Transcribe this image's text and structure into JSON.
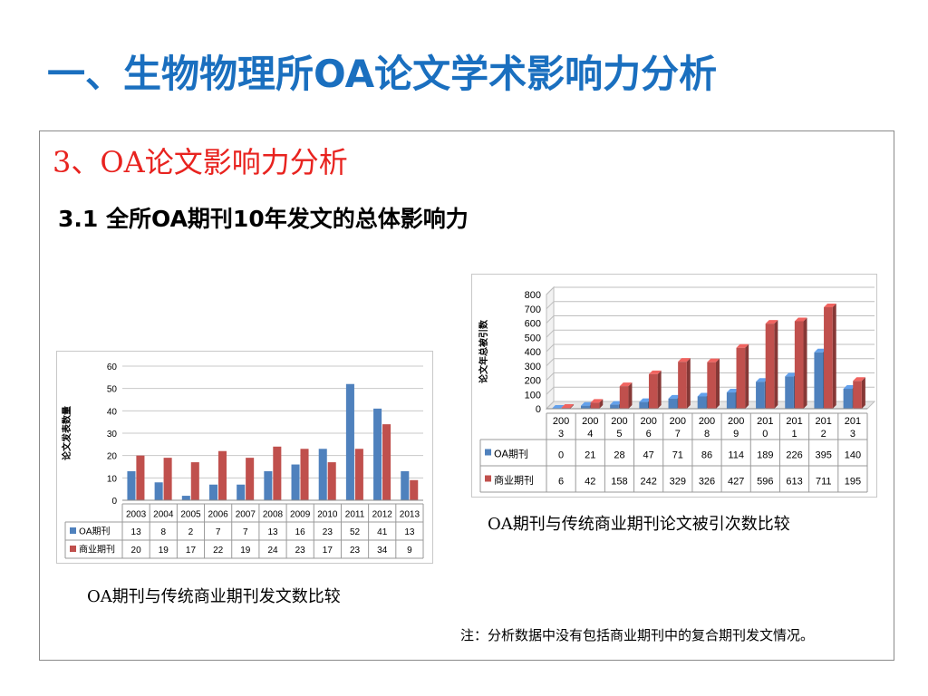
{
  "slide": {
    "title": "一、生物物理所OA论文学术影响力分析",
    "section": "3、OA论文影响力分析",
    "subtitle": "3.1 全所OA期刊10年发文的总体影响力",
    "note": "注：分析数据中没有包括商业期刊中的复合期刊发文情况。"
  },
  "colors": {
    "title": "#1a6fbf",
    "section": "#e8231f",
    "oa": "#4f81bd",
    "commercial": "#c0504d"
  },
  "chart_data": [
    {
      "type": "bar",
      "caption": "OA期刊与传统商业期刊发文数比较",
      "ylabel": "论文发表数量",
      "ylim": [
        0,
        60
      ],
      "yticks": [
        "0",
        "10",
        "20",
        "30",
        "40",
        "50",
        "60"
      ],
      "categories": [
        "2003",
        "2004",
        "2005",
        "2006",
        "2007",
        "2008",
        "2009",
        "2010",
        "2011",
        "2012",
        "2013"
      ],
      "series": [
        {
          "name": "OA期刊",
          "values": [
            13,
            8,
            2,
            7,
            7,
            13,
            16,
            23,
            52,
            41,
            13
          ]
        },
        {
          "name": "商业期刊",
          "values": [
            20,
            19,
            17,
            22,
            19,
            24,
            23,
            17,
            23,
            34,
            9
          ]
        }
      ],
      "grid": true,
      "legend": "data-table"
    },
    {
      "type": "bar",
      "style": "3d",
      "caption": "OA期刊与传统商业期刊论文被引次数比较",
      "ylabel": "论文年总被引数",
      "ylim": [
        0,
        800
      ],
      "yticks": [
        "0",
        "100",
        "200",
        "300",
        "400",
        "500",
        "600",
        "700",
        "800"
      ],
      "categories": [
        "2003",
        "2004",
        "2005",
        "2006",
        "2007",
        "2008",
        "2009",
        "2010",
        "2011",
        "2012",
        "2013"
      ],
      "series": [
        {
          "name": "OA期刊",
          "values": [
            0,
            21,
            28,
            47,
            71,
            86,
            114,
            189,
            226,
            395,
            140
          ]
        },
        {
          "name": "商业期刊",
          "values": [
            6,
            42,
            158,
            242,
            329,
            326,
            427,
            596,
            613,
            711,
            195
          ]
        }
      ],
      "grid": true,
      "legend": "data-table"
    }
  ]
}
